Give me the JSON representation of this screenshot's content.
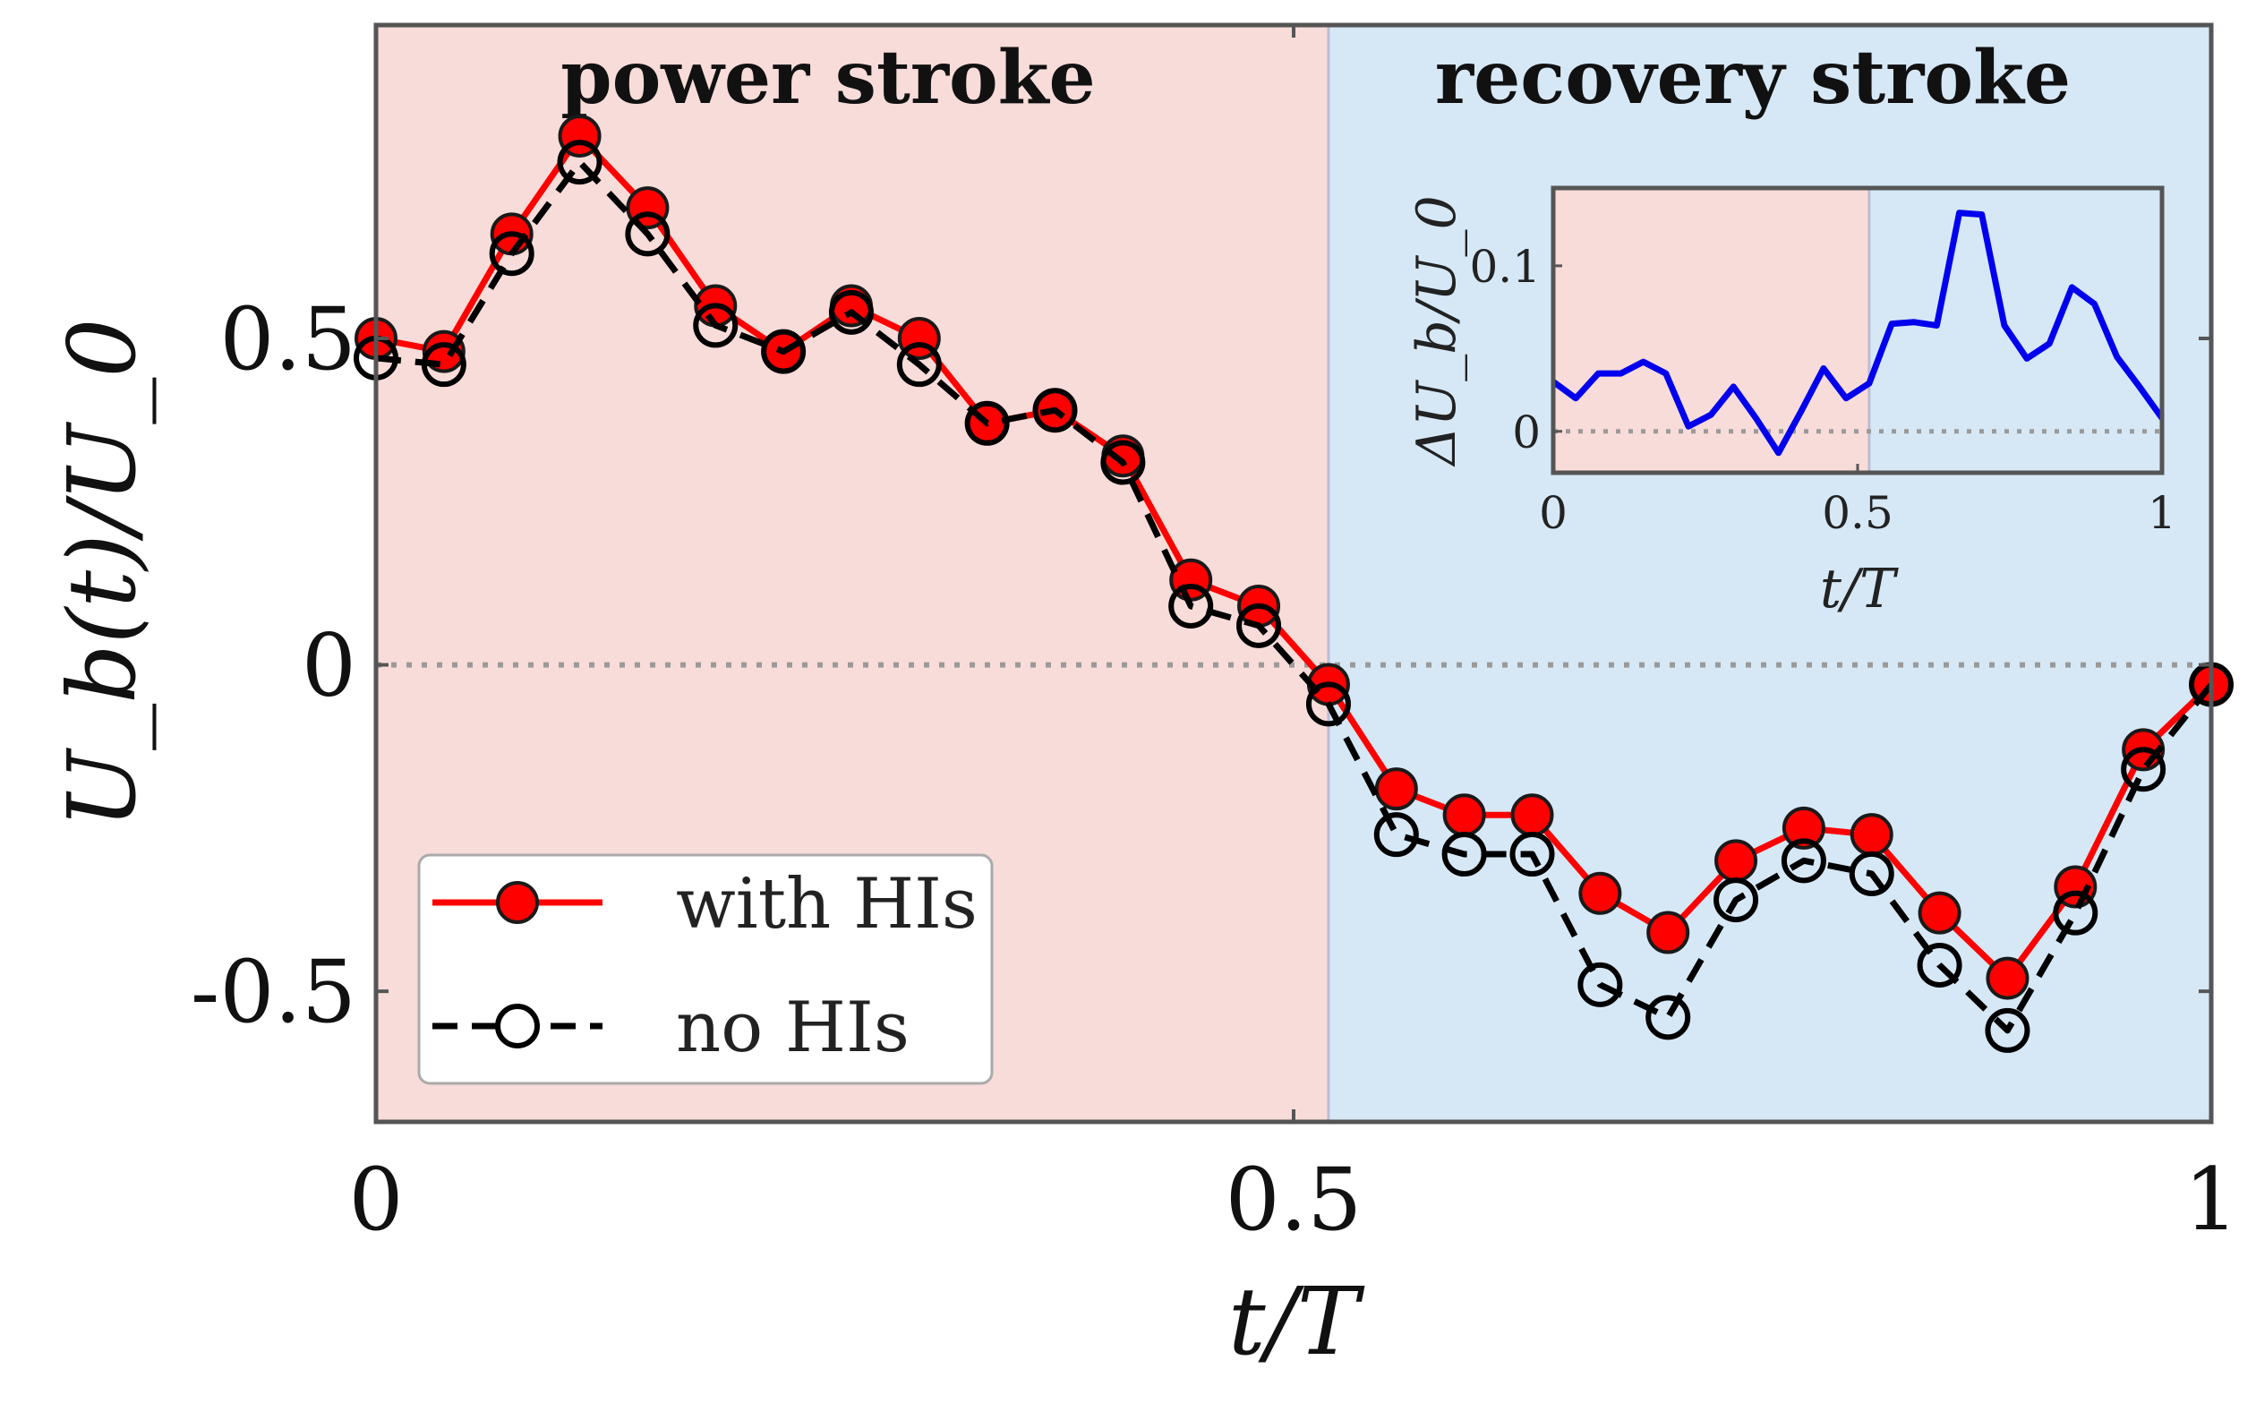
{
  "chart_data": [
    {
      "type": "line",
      "xlabel": "t/T",
      "ylabel": "U_b(t)/U_0",
      "xlim": [
        0,
        1
      ],
      "ylim": [
        -0.7,
        0.98
      ],
      "x_ticks": [
        "0",
        "0.5",
        "1"
      ],
      "y_ticks": [
        "0.5",
        "0",
        "-0.5"
      ],
      "regions": [
        {
          "label": "power stroke",
          "x_range": [
            0,
            0.519
          ],
          "color": "#f8dcd9"
        },
        {
          "label": "recovery stroke",
          "x_range": [
            0.519,
            1
          ],
          "color": "#d6e8f6"
        }
      ],
      "reference_line_y": 0,
      "legend": "bottom-left",
      "x": [
        0,
        0.037,
        0.074,
        0.111,
        0.148,
        0.185,
        0.222,
        0.259,
        0.296,
        0.333,
        0.37,
        0.407,
        0.444,
        0.481,
        0.519,
        0.556,
        0.593,
        0.63,
        0.667,
        0.704,
        0.741,
        0.778,
        0.815,
        0.852,
        0.889,
        0.926,
        0.963,
        1.0
      ],
      "series": [
        {
          "name": "with HIs",
          "color": "#ff0000",
          "marker": "filled-circle",
          "line": "solid",
          "values": [
            0.5,
            0.48,
            0.66,
            0.81,
            0.7,
            0.55,
            0.48,
            0.55,
            0.5,
            0.37,
            0.39,
            0.32,
            0.13,
            0.09,
            -0.03,
            -0.19,
            -0.23,
            -0.23,
            -0.35,
            -0.41,
            -0.3,
            -0.25,
            -0.26,
            -0.38,
            -0.48,
            -0.34,
            -0.13,
            -0.03
          ]
        },
        {
          "name": "no HIs",
          "color": "#000000",
          "marker": "open-circle",
          "line": "dashed",
          "values": [
            0.47,
            0.46,
            0.63,
            0.77,
            0.66,
            0.52,
            0.48,
            0.54,
            0.46,
            0.37,
            0.39,
            0.31,
            0.09,
            0.06,
            -0.06,
            -0.26,
            -0.29,
            -0.29,
            -0.49,
            -0.54,
            -0.36,
            -0.3,
            -0.32,
            -0.46,
            -0.56,
            -0.38,
            -0.16,
            -0.03
          ]
        }
      ]
    },
    {
      "type": "line",
      "inset": true,
      "xlabel": "t/T",
      "ylabel": "ΔU_b/U_0",
      "xlim": [
        0,
        1
      ],
      "ylim": [
        -0.025,
        0.147
      ],
      "x_ticks": [
        "0",
        "0.5",
        "1"
      ],
      "y_ticks": [
        "0.1",
        "0"
      ],
      "reference_line_y": 0,
      "region_split_x": 0.519,
      "x": [
        0,
        0.037,
        0.074,
        0.111,
        0.148,
        0.185,
        0.222,
        0.259,
        0.296,
        0.333,
        0.37,
        0.407,
        0.444,
        0.481,
        0.519,
        0.556,
        0.593,
        0.63,
        0.667,
        0.704,
        0.741,
        0.778,
        0.815,
        0.852,
        0.889,
        0.926,
        0.963,
        1.0
      ],
      "series": [
        {
          "color": "#0000ee",
          "values": [
            0.03,
            0.02,
            0.035,
            0.035,
            0.042,
            0.035,
            0.003,
            0.01,
            0.027,
            0.008,
            -0.013,
            0.012,
            0.038,
            0.02,
            0.029,
            0.065,
            0.066,
            0.064,
            0.132,
            0.131,
            0.064,
            0.044,
            0.053,
            0.087,
            0.077,
            0.045,
            0.027,
            0.008
          ]
        }
      ]
    }
  ]
}
